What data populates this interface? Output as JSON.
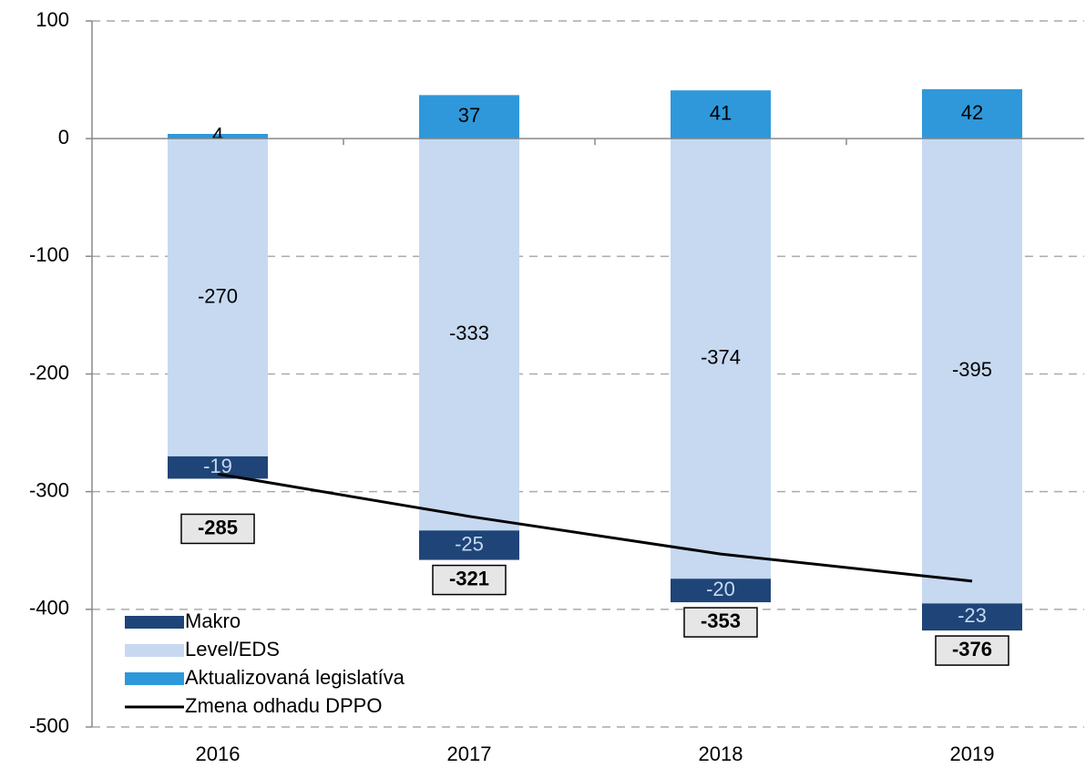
{
  "chart_data": {
    "type": "bar",
    "stacked": true,
    "categories": [
      "2016",
      "2017",
      "2018",
      "2019"
    ],
    "series": [
      {
        "name": "Makro",
        "color": "#1f4477",
        "values": [
          -19,
          -25,
          -20,
          -23
        ]
      },
      {
        "name": "Level/EDS",
        "color": "#c6d9f1",
        "values": [
          -270,
          -333,
          -374,
          -395
        ]
      },
      {
        "name": "Aktualizovaná legislatíva",
        "color": "#2e98db",
        "values": [
          4,
          37,
          41,
          42
        ]
      },
      {
        "name": "Zmena odhadu DPPO",
        "type": "line",
        "color": "#000000",
        "values": [
          -285,
          -321,
          -353,
          -376
        ]
      }
    ],
    "ylim": [
      -500,
      100
    ],
    "yticks": [
      -500,
      -400,
      -300,
      -200,
      -100,
      0,
      100
    ],
    "grid": true,
    "legend": "lower left"
  }
}
